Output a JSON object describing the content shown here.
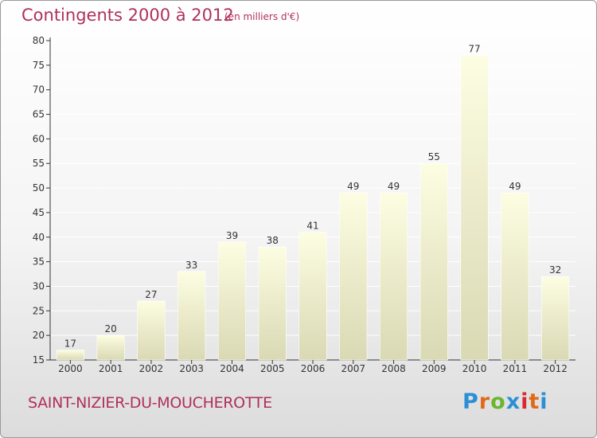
{
  "header": {
    "title": "Contingents 2000 à 2012",
    "subtitle": "(en milliers d'€)"
  },
  "footer": {
    "place": "SAINT-NIZIER-DU-MOUCHEROTTE",
    "logo": [
      "P",
      "r",
      "o",
      "x",
      "i",
      "t",
      "i"
    ]
  },
  "colors": {
    "title": "#b0305a",
    "bar_light": "#fdfde2",
    "bar_dark": "#d9d9b4",
    "axis": "#333333",
    "grid": "#ffffff",
    "logo": [
      "#2c8fd6",
      "#e06a1b",
      "#6bb52f",
      "#2c8fd6",
      "#d7282f",
      "#e06a1b",
      "#2c8fd6"
    ]
  },
  "chart_data": {
    "type": "bar",
    "title": "Contingents 2000 à 2012",
    "subtitle": "(en milliers d'€)",
    "categories": [
      "2000",
      "2001",
      "2002",
      "2003",
      "2004",
      "2005",
      "2006",
      "2007",
      "2008",
      "2009",
      "2010",
      "2011",
      "2012"
    ],
    "values": [
      17,
      20,
      27,
      33,
      39,
      38,
      41,
      49,
      49,
      55,
      77,
      49,
      32
    ],
    "ylim": [
      15,
      80
    ],
    "yticks": [
      15,
      20,
      25,
      30,
      35,
      40,
      45,
      50,
      55,
      60,
      65,
      70,
      75,
      80
    ],
    "grid": true,
    "legend": "none"
  }
}
